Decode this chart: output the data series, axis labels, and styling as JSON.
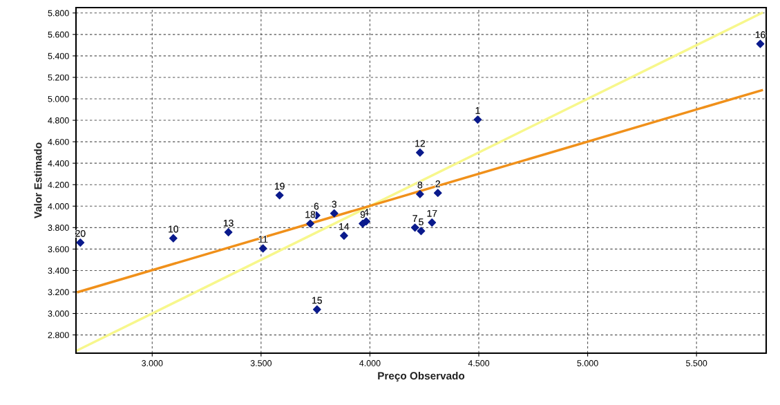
{
  "chart_data": {
    "type": "scatter",
    "xlabel": "Preço Observado",
    "ylabel": "Valor Estimado",
    "xlim": [
      2650,
      5820
    ],
    "ylim": [
      2630,
      5850
    ],
    "xticks": [
      {
        "value": 3000,
        "label": "3.000"
      },
      {
        "value": 3500,
        "label": "3.500"
      },
      {
        "value": 4000,
        "label": "4.000"
      },
      {
        "value": 4500,
        "label": "4.500"
      },
      {
        "value": 5000,
        "label": "5.000"
      },
      {
        "value": 5500,
        "label": "5.500"
      }
    ],
    "yticks": [
      {
        "value": 2800,
        "label": "2.800"
      },
      {
        "value": 3000,
        "label": "3.000"
      },
      {
        "value": 3200,
        "label": "3.200"
      },
      {
        "value": 3400,
        "label": "3.400"
      },
      {
        "value": 3600,
        "label": "3.600"
      },
      {
        "value": 3800,
        "label": "3.800"
      },
      {
        "value": 4000,
        "label": "4.000"
      },
      {
        "value": 4200,
        "label": "4.200"
      },
      {
        "value": 4400,
        "label": "4.400"
      },
      {
        "value": 4600,
        "label": "4.600"
      },
      {
        "value": 4800,
        "label": "4.800"
      },
      {
        "value": 5000,
        "label": "5.000"
      },
      {
        "value": 5200,
        "label": "5.200"
      },
      {
        "value": 5400,
        "label": "5.400"
      },
      {
        "value": 5600,
        "label": "5.600"
      },
      {
        "value": 5800,
        "label": "5.800"
      }
    ],
    "grid": true,
    "series": [
      {
        "type": "line",
        "color": "#f7f78c",
        "x": [
          2650,
          5800
        ],
        "values": [
          2650,
          5800
        ]
      },
      {
        "type": "line",
        "color": "#f0901a",
        "x": [
          2660,
          5800
        ],
        "values": [
          3200,
          5080
        ]
      },
      {
        "marker": "diamond",
        "color": "#0a1a8c",
        "x": [
          4495,
          4312,
          3836,
          3983,
          4235,
          3754,
          4207,
          4230,
          3967,
          3097,
          3509,
          4230,
          3350,
          3881,
          3757,
          5793,
          4285,
          3726,
          3585,
          2670
        ],
        "values": [
          4806,
          4123,
          3933,
          3858,
          3768,
          3914,
          3800,
          4112,
          3837,
          3701,
          3606,
          4499,
          3757,
          3725,
          3037,
          5512,
          3847,
          3837,
          4101,
          3660
        ]
      }
    ],
    "annotations": [
      {
        "text": "1",
        "x": 4495,
        "y": 4806
      },
      {
        "text": "2",
        "x": 4312,
        "y": 4123
      },
      {
        "text": "3",
        "x": 3836,
        "y": 3933
      },
      {
        "text": "4",
        "x": 3983,
        "y": 3858
      },
      {
        "text": "5",
        "x": 4235,
        "y": 3768
      },
      {
        "text": "6",
        "x": 3754,
        "y": 3914
      },
      {
        "text": "7",
        "x": 4207,
        "y": 3800
      },
      {
        "text": "8",
        "x": 4230,
        "y": 4112
      },
      {
        "text": "9",
        "x": 3967,
        "y": 3837
      },
      {
        "text": "10",
        "x": 3097,
        "y": 3701
      },
      {
        "text": "11",
        "x": 3509,
        "y": 3606
      },
      {
        "text": "12",
        "x": 4230,
        "y": 4499
      },
      {
        "text": "13",
        "x": 3350,
        "y": 3757
      },
      {
        "text": "14",
        "x": 3881,
        "y": 3725
      },
      {
        "text": "15",
        "x": 3757,
        "y": 3037
      },
      {
        "text": "16",
        "x": 5793,
        "y": 5512
      },
      {
        "text": "17",
        "x": 4285,
        "y": 3847
      },
      {
        "text": "18",
        "x": 3726,
        "y": 3837
      },
      {
        "text": "19",
        "x": 3585,
        "y": 4101
      },
      {
        "text": "20",
        "x": 2670,
        "y": 3660
      }
    ]
  }
}
